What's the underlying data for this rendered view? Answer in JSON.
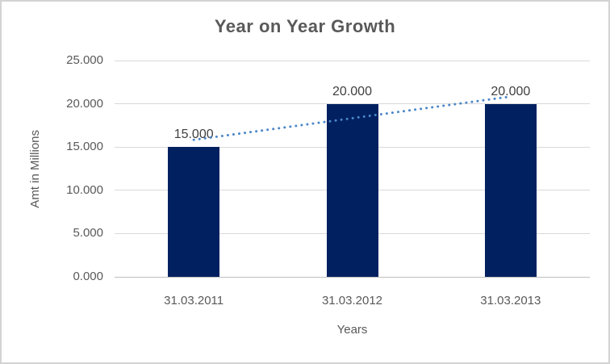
{
  "chart_data": {
    "type": "bar",
    "title": "Year on Year Growth",
    "xlabel": "Years",
    "ylabel": "Amt in Millions",
    "categories": [
      "31.03.2011",
      "31.03.2012",
      "31.03.2013"
    ],
    "values": [
      15.0,
      20.0,
      20.0
    ],
    "data_labels": [
      "15.000",
      "20.000",
      "20.000"
    ],
    "ylim": [
      0,
      25
    ],
    "ytick_values": [
      0,
      5,
      10,
      15,
      20,
      25
    ],
    "ytick_labels": [
      "0.000",
      "5.000",
      "10.000",
      "15.000",
      "20.000",
      "25.000"
    ],
    "grid": true,
    "legend": "none",
    "trendline": {
      "type": "linear",
      "style": "dotted"
    },
    "colors": {
      "bar": "#002060",
      "trendline": "#4A86C8",
      "gridline": "#D9D9D9",
      "axis_line": "#BFBFBF",
      "title_text": "#595959",
      "axis_text": "#595959",
      "data_label_text": "#404040",
      "border": "#D3D3D3",
      "background": "#FFFFFF"
    }
  }
}
